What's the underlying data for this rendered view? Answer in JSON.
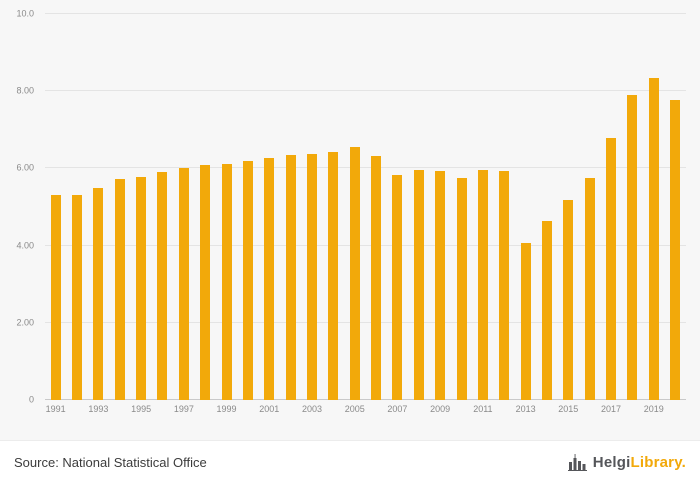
{
  "chart_data": {
    "type": "bar",
    "title": "",
    "xlabel": "",
    "ylabel": "",
    "ylim": [
      0,
      10
    ],
    "grid": true,
    "legend": "none",
    "bar_color": "#F2A90A",
    "yticks": [
      {
        "value": 0,
        "label": "0"
      },
      {
        "value": 2,
        "label": "2.00"
      },
      {
        "value": 4,
        "label": "4.00"
      },
      {
        "value": 6,
        "label": "6.00"
      },
      {
        "value": 8,
        "label": "8.00"
      },
      {
        "value": 10,
        "label": "10.0"
      }
    ],
    "categories": [
      "1991",
      "1992",
      "1993",
      "1994",
      "1995",
      "1996",
      "1997",
      "1998",
      "1999",
      "2000",
      "2001",
      "2002",
      "2003",
      "2004",
      "2005",
      "2006",
      "2007",
      "2008",
      "2009",
      "2010",
      "2011",
      "2012",
      "2013",
      "2014",
      "2015",
      "2016",
      "2017",
      "2018",
      "2019",
      "2020"
    ],
    "values": [
      5.3,
      5.3,
      5.5,
      5.73,
      5.77,
      5.9,
      6.0,
      6.08,
      6.12,
      6.2,
      6.27,
      6.35,
      6.38,
      6.43,
      6.55,
      6.32,
      5.82,
      5.97,
      5.93,
      5.75,
      5.97,
      5.93,
      4.07,
      4.65,
      5.17,
      5.75,
      6.8,
      7.9,
      8.35,
      7.78
    ],
    "xtick_every": 2
  },
  "footer": {
    "source": "Source: National Statistical Office",
    "logo": {
      "brand_primary": "Helgi",
      "brand_secondary": "Library",
      "suffix": "."
    }
  },
  "colors": {
    "background": "#f7f7f7",
    "footer_background": "#ffffff",
    "bar": "#F2A90A",
    "gridline": "#e4e4e4",
    "axis": "#c9c9c9",
    "tick_text": "#8a8a8a",
    "source_text": "#3c3c3c",
    "logo_gray": "#55565a",
    "logo_orange": "#F2A90A"
  }
}
